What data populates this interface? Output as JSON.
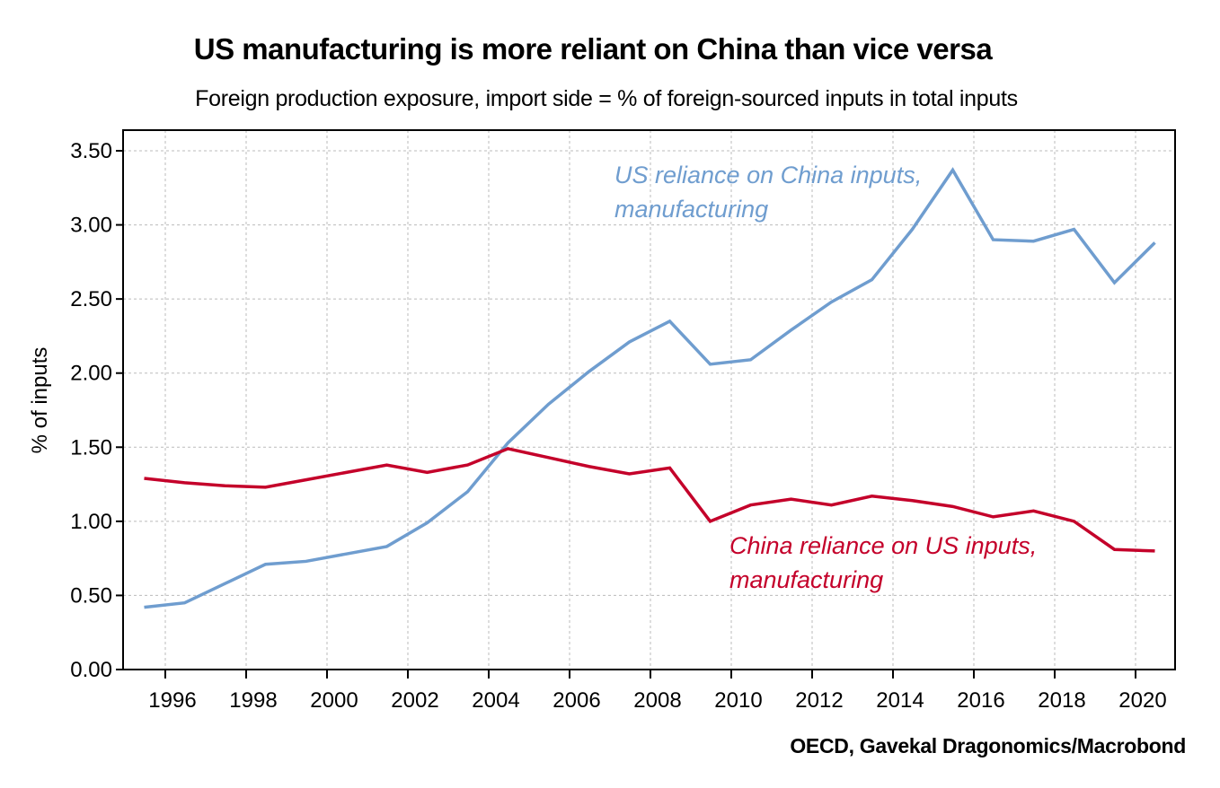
{
  "chart_data": {
    "type": "line",
    "title": "US manufacturing is more reliant on China than vice versa",
    "subtitle": "Foreign production exposure, import side = % of foreign-sourced inputs in total inputs",
    "ylabel": "% of inputs",
    "xlabel": "",
    "source": "OECD, Gavekal Dragonomics/Macrobond",
    "ylim": [
      0,
      3.5
    ],
    "yticks": [
      "0.00",
      "0.50",
      "1.00",
      "1.50",
      "2.00",
      "2.50",
      "3.00",
      "3.50"
    ],
    "xticks": [
      "1996",
      "1998",
      "2000",
      "2002",
      "2004",
      "2006",
      "2008",
      "2010",
      "2012",
      "2014",
      "2016",
      "2018",
      "2020"
    ],
    "grid": true,
    "x": [
      1995,
      1996,
      1997,
      1998,
      1999,
      2000,
      2001,
      2002,
      2003,
      2004,
      2005,
      2006,
      2007,
      2008,
      2009,
      2010,
      2011,
      2012,
      2013,
      2014,
      2015,
      2016,
      2017,
      2018,
      2019,
      2020
    ],
    "series": [
      {
        "name": "US reliance on China inputs, manufacturing",
        "label_lines": [
          "US reliance on China inputs,",
          "manufacturing"
        ],
        "color": "#6f9dcf",
        "values": [
          0.42,
          0.45,
          0.58,
          0.71,
          0.73,
          0.78,
          0.83,
          0.99,
          1.2,
          1.53,
          1.79,
          2.01,
          2.21,
          2.35,
          2.06,
          2.09,
          2.29,
          2.48,
          2.63,
          2.97,
          3.37,
          2.9,
          2.89,
          2.97,
          2.61,
          2.88
        ]
      },
      {
        "name": "China reliance on US inputs, manufacturing",
        "label_lines": [
          "China reliance on US inputs,",
          "manufacturing"
        ],
        "color": "#c4002a",
        "values": [
          1.29,
          1.26,
          1.24,
          1.23,
          1.28,
          1.33,
          1.38,
          1.33,
          1.38,
          1.49,
          1.43,
          1.37,
          1.32,
          1.36,
          1.0,
          1.11,
          1.15,
          1.11,
          1.17,
          1.14,
          1.1,
          1.03,
          1.07,
          1.0,
          0.81,
          0.8
        ]
      }
    ]
  }
}
